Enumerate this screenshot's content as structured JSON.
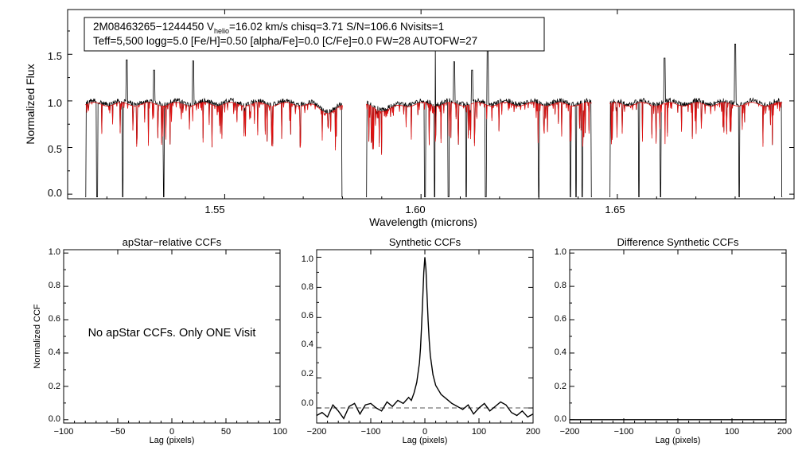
{
  "colors": {
    "observed": "#000000",
    "model": "#e01010",
    "axis": "#000000",
    "dashed": "#555555"
  },
  "chart_data": [
    {
      "type": "line",
      "id": "spectrum",
      "title": "",
      "xlabel": "Wavelength (microns)",
      "ylabel": "Normalized Flux",
      "xlim": [
        1.51,
        1.695
      ],
      "ylim": [
        -0.05,
        1.98
      ],
      "xticks": [
        "1.55",
        "1.60",
        "1.65"
      ],
      "xtick_values": [
        1.55,
        1.6,
        1.65
      ],
      "yticks": [
        "0.0",
        "0.5",
        "1.0",
        "1.5"
      ],
      "ytick_values": [
        0.0,
        0.5,
        1.0,
        1.5
      ],
      "annotation": {
        "line1_prefix": "2M08463265−1244450  V",
        "line1_sub": "helio",
        "line1_suffix": "=16.02 km/s  chisq=3.71  S/N=106.6  Nvisits=1",
        "line2": "Teff=5,500 logg=5.0 [Fe/H]=0.50 [alpha/Fe]=0.0 [C/Fe]=0.0 FW=28 AUTOFW=27"
      },
      "segments": [
        [
          1.5145,
          1.58
        ],
        [
          1.586,
          1.6435
        ],
        [
          1.648,
          1.692
        ]
      ],
      "continuum": 1.0,
      "emission_lines": [
        [
          1.525,
          1.44
        ],
        [
          1.532,
          1.33
        ],
        [
          1.542,
          1.43
        ],
        [
          1.6035,
          1.62
        ],
        [
          1.6085,
          1.42
        ],
        [
          1.613,
          1.33
        ],
        [
          1.617,
          1.6
        ],
        [
          1.662,
          1.46
        ],
        [
          1.68,
          1.61
        ]
      ],
      "deep_drops": [
        1.5145,
        1.5175,
        1.524,
        1.5345,
        1.58,
        1.586,
        1.601,
        1.6035,
        1.607,
        1.6115,
        1.6165,
        1.63,
        1.638,
        1.6395,
        1.641,
        1.6435,
        1.648,
        1.6555,
        1.661,
        1.681,
        1.692
      ],
      "series": [
        {
          "name": "observed",
          "color": "#000000"
        },
        {
          "name": "model",
          "color": "#e01010"
        }
      ]
    },
    {
      "type": "line",
      "id": "apstar-ccf",
      "title": "apStar−relative CCFs",
      "xlabel": "Lag (pixels)",
      "ylabel": "Normalized CCF",
      "xlim": [
        -100,
        100
      ],
      "ylim": [
        -0.02,
        1.02
      ],
      "xticks": [
        "−100",
        "−50",
        "0",
        "50",
        "100"
      ],
      "xtick_values": [
        -100,
        -50,
        0,
        50,
        100
      ],
      "yticks": [
        "0.0",
        "0.2",
        "0.4",
        "0.6",
        "0.8",
        "1.0"
      ],
      "ytick_values": [
        0.0,
        0.2,
        0.4,
        0.6,
        0.8,
        1.0
      ],
      "note": "No apStar CCFs.  Only ONE Visit",
      "series": []
    },
    {
      "type": "line",
      "id": "synthetic-ccf",
      "title": "Synthetic CCFs",
      "xlabel": "Lag (pixels)",
      "ylabel": "",
      "xlim": [
        -200,
        200
      ],
      "ylim": [
        -0.1,
        1.05
      ],
      "xticks": [
        "−200",
        "−100",
        "0",
        "100",
        "200"
      ],
      "xtick_values": [
        -200,
        -100,
        0,
        100,
        200
      ],
      "yticks": [
        "0.0",
        "0.2",
        "0.4",
        "0.6",
        "0.8",
        "1.0"
      ],
      "ytick_values": [
        0.0,
        0.2,
        0.4,
        0.6,
        0.8,
        1.0
      ],
      "baseline": 0.0,
      "series": [
        {
          "name": "ccf",
          "x": [
            -200,
            -190,
            -180,
            -170,
            -160,
            -150,
            -140,
            -130,
            -120,
            -110,
            -100,
            -90,
            -80,
            -70,
            -60,
            -50,
            -40,
            -30,
            -25,
            -20,
            -15,
            -10,
            -8,
            -6,
            -4,
            -2,
            0,
            2,
            4,
            6,
            8,
            10,
            15,
            20,
            25,
            30,
            40,
            50,
            60,
            70,
            80,
            90,
            100,
            110,
            120,
            130,
            140,
            150,
            160,
            170,
            180,
            190,
            200
          ],
          "y": [
            -0.05,
            -0.03,
            -0.06,
            0.02,
            -0.02,
            -0.07,
            0.01,
            0.03,
            -0.04,
            0.02,
            0.03,
            0.0,
            -0.02,
            0.04,
            0.01,
            0.05,
            0.03,
            0.07,
            0.05,
            0.1,
            0.17,
            0.3,
            0.4,
            0.55,
            0.72,
            0.9,
            1.0,
            0.92,
            0.75,
            0.58,
            0.45,
            0.35,
            0.22,
            0.15,
            0.12,
            0.09,
            0.06,
            0.03,
            0.01,
            -0.01,
            0.02,
            -0.04,
            0.0,
            0.03,
            -0.02,
            0.01,
            0.04,
            0.02,
            -0.03,
            -0.05,
            -0.02,
            -0.06,
            -0.04
          ]
        }
      ]
    },
    {
      "type": "line",
      "id": "difference-ccf",
      "title": "Difference Synthetic CCFs",
      "xlabel": "Lag (pixels)",
      "ylabel": "",
      "xlim": [
        -200,
        200
      ],
      "ylim": [
        -0.02,
        1.02
      ],
      "xticks": [
        "−200",
        "−100",
        "0",
        "100",
        "200"
      ],
      "xtick_values": [
        -200,
        -100,
        0,
        100,
        200
      ],
      "yticks": [
        "0.0",
        "0.2",
        "0.4",
        "0.6",
        "0.8",
        "1.0"
      ],
      "ytick_values": [
        0.0,
        0.2,
        0.4,
        0.6,
        0.8,
        1.0
      ],
      "baseline": 0.0,
      "series": [
        {
          "name": "difference",
          "x": [
            -200,
            200
          ],
          "y": [
            0.0,
            0.0
          ]
        }
      ]
    }
  ]
}
